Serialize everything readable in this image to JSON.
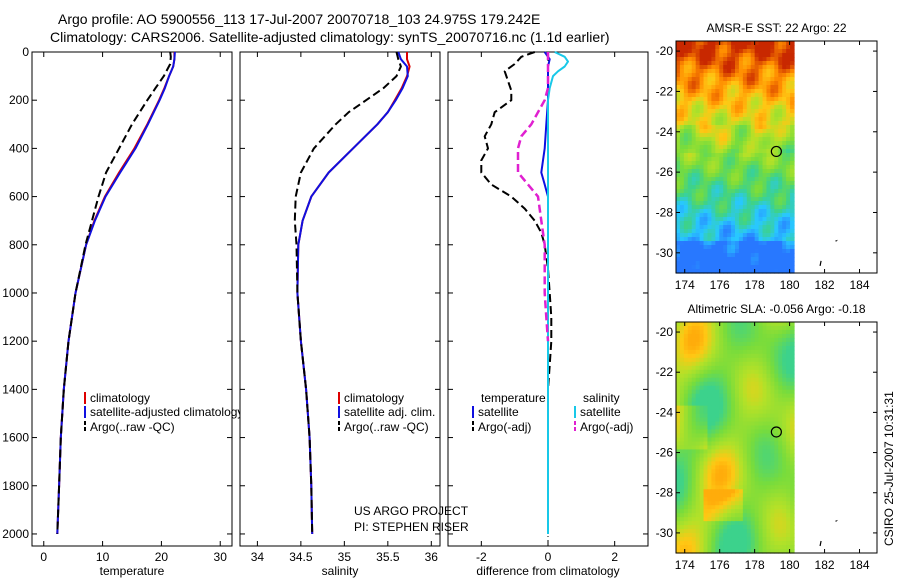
{
  "header": {
    "line1": "Argo profile: AO 5900556_113 17-Jul-2007 20070718_103 24.975S 179.242E",
    "line2": "Climatology: CARS2006. Satellite-adjusted climatology: synTS_20070716.nc (1.1d earlier)"
  },
  "side_label": "CSIRO 25-Jul-2007 10:31:31",
  "project_note": [
    "US ARGO PROJECT",
    "PI: STEPHEN RISER"
  ],
  "colors": {
    "climatology": "#dd0000",
    "satellite": "#1010e0",
    "argo": "#000000",
    "sat_salinity": "#18c8e8",
    "argo_salinity": "#e020d0"
  },
  "chart_data": [
    {
      "type": "line",
      "title": "",
      "xlabel": "temperature",
      "ylabel": "",
      "xlim": [
        -2,
        32
      ],
      "ylim": [
        2050,
        0
      ],
      "xticks": [
        0,
        10,
        20,
        30
      ],
      "yticks": [
        0,
        200,
        400,
        600,
        800,
        1000,
        1200,
        1400,
        1600,
        1800,
        2000
      ],
      "legend": [
        "climatology",
        "satellite-adjusted climatology",
        "Argo(..raw -QC)"
      ],
      "series": [
        {
          "name": "climatology",
          "depth": [
            0,
            30,
            60,
            100,
            150,
            200,
            300,
            400,
            500,
            600,
            700,
            800,
            1000,
            1200,
            1400,
            1600,
            1800,
            2000
          ],
          "values": [
            22.2,
            22.2,
            22.0,
            21.3,
            20.5,
            19.6,
            17.6,
            15.4,
            12.8,
            10.4,
            8.6,
            7.2,
            5.4,
            4.2,
            3.4,
            2.9,
            2.6,
            2.3
          ]
        },
        {
          "name": "satellite-adjusted climatology",
          "depth": [
            0,
            30,
            60,
            100,
            150,
            200,
            300,
            400,
            500,
            600,
            700,
            800,
            1000,
            1200,
            1400,
            1600,
            1800,
            2000
          ],
          "values": [
            22.3,
            22.2,
            22.0,
            21.3,
            20.6,
            19.7,
            17.7,
            15.6,
            13.0,
            10.5,
            8.7,
            7.2,
            5.4,
            4.2,
            3.4,
            2.9,
            2.6,
            2.3
          ]
        },
        {
          "name": "Argo(..raw -QC)",
          "depth": [
            0,
            20,
            50,
            100,
            150,
            200,
            300,
            400,
            500,
            600,
            700,
            800,
            1000,
            1200,
            1400,
            1600,
            1800,
            2000
          ],
          "values": [
            21.5,
            21.6,
            21.5,
            20.4,
            19.0,
            17.6,
            15.0,
            12.8,
            10.6,
            9.3,
            8.2,
            7.1,
            5.4,
            4.2,
            3.4,
            2.9,
            2.6,
            2.3
          ]
        }
      ]
    },
    {
      "type": "line",
      "title": "",
      "xlabel": "salinity",
      "ylabel": "",
      "xlim": [
        33.8,
        36.1
      ],
      "ylim": [
        2050,
        0
      ],
      "xticks": [
        34,
        34.5,
        35,
        35.5,
        36
      ],
      "legend": [
        "climatology",
        "satellite adj. clim.",
        "Argo(..raw -QC)"
      ],
      "series": [
        {
          "name": "climatology",
          "depth": [
            0,
            30,
            60,
            100,
            150,
            200,
            250,
            300,
            400,
            500,
            600,
            700,
            800,
            1000,
            1200,
            1400,
            1600,
            1800,
            2000
          ],
          "values": [
            35.72,
            35.72,
            35.75,
            35.72,
            35.66,
            35.58,
            35.5,
            35.38,
            35.1,
            34.82,
            34.62,
            34.52,
            34.47,
            34.46,
            34.5,
            34.56,
            34.6,
            34.62,
            34.63
          ]
        },
        {
          "name": "satellite adj. clim.",
          "depth": [
            0,
            30,
            60,
            100,
            150,
            200,
            250,
            300,
            400,
            500,
            600,
            700,
            800,
            1000,
            1200,
            1400,
            1600,
            1800,
            2000
          ],
          "values": [
            35.62,
            35.65,
            35.72,
            35.73,
            35.67,
            35.59,
            35.5,
            35.38,
            35.1,
            34.82,
            34.62,
            34.52,
            34.47,
            34.46,
            34.5,
            34.56,
            34.6,
            34.62,
            34.63
          ]
        },
        {
          "name": "Argo(..raw -QC)",
          "depth": [
            0,
            30,
            60,
            100,
            150,
            200,
            250,
            300,
            400,
            500,
            600,
            700,
            800,
            1000,
            1200,
            1400,
            1600,
            1800,
            2000
          ],
          "values": [
            35.6,
            35.62,
            35.65,
            35.6,
            35.45,
            35.25,
            35.05,
            34.9,
            34.65,
            34.5,
            34.44,
            34.43,
            34.45,
            34.46,
            34.5,
            34.56,
            34.6,
            34.62,
            34.63
          ]
        }
      ]
    },
    {
      "type": "line",
      "title": "",
      "xlabel": "difference from climatology",
      "ylabel": "",
      "xlim": [
        -3,
        3
      ],
      "ylim": [
        2050,
        0
      ],
      "xticks": [
        -2,
        0,
        2
      ],
      "legend": [
        "temperature satellite",
        "temperature Argo(-adj)",
        "salinity satellite",
        "salinity Argo(-adj)"
      ],
      "series": [
        {
          "name": "temperature satellite",
          "depth": [
            0,
            30,
            60,
            100,
            200,
            300,
            400,
            450,
            500,
            550,
            600,
            700,
            800,
            1000,
            1200,
            1500,
            2000
          ],
          "values": [
            -0.1,
            0.05,
            0.0,
            0.0,
            0.0,
            -0.05,
            -0.1,
            -0.15,
            -0.2,
            -0.1,
            0.0,
            0.0,
            0.0,
            0.0,
            0.0,
            0.0,
            0.0
          ]
        },
        {
          "name": "temperature Argo(-adj)",
          "depth": [
            0,
            20,
            50,
            80,
            120,
            160,
            200,
            250,
            300,
            350,
            400,
            450,
            500,
            550,
            600,
            650,
            700,
            750,
            800,
            900,
            1000,
            1100,
            1200,
            1300,
            1400,
            1500,
            1600,
            1700,
            1800,
            1900,
            2000
          ],
          "values": [
            -0.4,
            -0.8,
            -1.0,
            -1.3,
            -1.2,
            -1.1,
            -1.1,
            -1.6,
            -1.7,
            -1.9,
            -1.8,
            -2.0,
            -2.0,
            -1.7,
            -1.1,
            -0.7,
            -0.4,
            -0.2,
            -0.1,
            0.0,
            0.05,
            0.1,
            0.1,
            0.05,
            0.0,
            0.0,
            0.0,
            0.0,
            0.0,
            0.0,
            0.0
          ]
        },
        {
          "name": "salinity satellite",
          "depth": [
            0,
            20,
            40,
            60,
            80,
            100,
            150,
            200,
            300,
            400,
            500,
            600,
            800,
            1000,
            1500,
            2000
          ],
          "values": [
            0.2,
            0.5,
            0.6,
            0.5,
            0.3,
            0.15,
            0.05,
            0.0,
            0.0,
            0.0,
            0.0,
            0.0,
            0.0,
            0.0,
            0.0,
            0.0
          ]
        },
        {
          "name": "salinity Argo(-adj)",
          "depth": [
            0,
            20,
            50,
            100,
            150,
            200,
            250,
            300,
            350,
            400,
            450,
            500,
            550,
            600,
            700,
            800,
            900,
            1000,
            1100,
            1200
          ],
          "values": [
            0.0,
            0.0,
            0.0,
            0.0,
            0.0,
            -0.1,
            -0.3,
            -0.5,
            -0.8,
            -0.9,
            -0.9,
            -0.9,
            -0.6,
            -0.3,
            -0.2,
            -0.1,
            -0.1,
            -0.1,
            -0.05,
            0.0
          ]
        }
      ]
    },
    {
      "type": "heatmap",
      "title": "AMSR-E SST: 22 Argo: 22",
      "xlabel": "",
      "ylabel": "",
      "xlim": [
        173.5,
        185
      ],
      "ylim": [
        -19.5,
        -31
      ],
      "xticks": [
        174,
        176,
        178,
        180,
        182,
        184
      ],
      "yticks": [
        -20,
        -22,
        -24,
        -26,
        -28,
        -30
      ],
      "value_range": [
        19.5,
        24.5
      ],
      "float_position": {
        "lon": 179.242,
        "lat": -24.975
      }
    },
    {
      "type": "heatmap",
      "title": "Altimetric SLA: -0.056 Argo: -0.18",
      "xlabel": "",
      "ylabel": "",
      "xlim": [
        173.5,
        185
      ],
      "ylim": [
        -19.5,
        -31
      ],
      "xticks": [
        174,
        176,
        178,
        180,
        182,
        184
      ],
      "yticks": [
        -20,
        -22,
        -24,
        -26,
        -28,
        -30
      ],
      "value_range": [
        -0.25,
        0.15
      ],
      "float_position": {
        "lon": 179.242,
        "lat": -24.975
      }
    }
  ]
}
